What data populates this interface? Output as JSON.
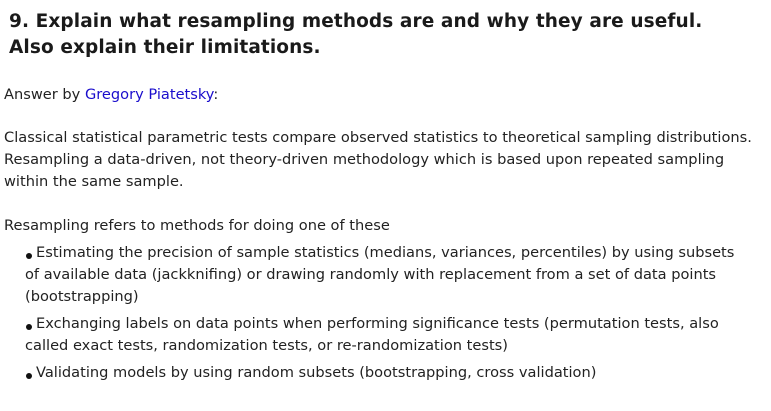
{
  "question": {
    "text": "9. Explain what resampling methods are and why they are useful. Also explain their limitations."
  },
  "byline": {
    "prefix": "Answer by ",
    "author_link": "Gregory Piatetsky",
    "suffix": ":"
  },
  "paragraph": "Classical statistical parametric tests compare observed statistics to theoretical sampling distributions. Resampling a data-driven, not theory-driven methodology which is based upon repeated sampling within the same sample.",
  "intro": "Resampling refers to methods for doing one of these",
  "methods": [
    "Estimating the precision of sample statistics (medians, variances, percentiles) by using subsets of available data (jackknifing) or drawing randomly with replacement from a set of data points (bootstrapping)",
    "Exchanging labels on data points when performing significance tests (permutation tests, also called exact tests, randomization tests, or re-randomization tests)",
    "Validating models by using random subsets (bootstrapping, cross validation)"
  ],
  "colors": {
    "link": "#1a0dcc",
    "text": "#222222",
    "heading": "#1a1a1a"
  }
}
